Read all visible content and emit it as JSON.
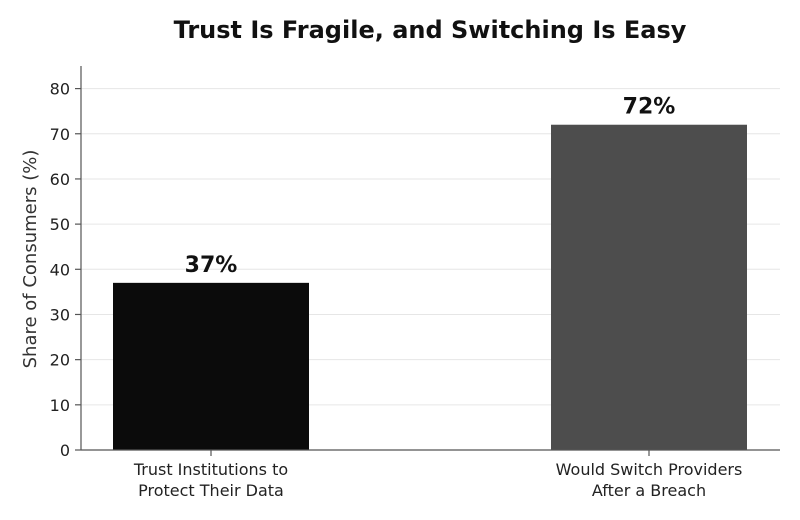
{
  "chart_data": {
    "type": "bar",
    "title": "Trust Is Fragile, and Switching Is Easy",
    "xlabel": "",
    "ylabel": "Share of Consumers (%)",
    "ylim": [
      0,
      85
    ],
    "yticks": [
      0,
      10,
      20,
      30,
      40,
      50,
      60,
      70,
      80
    ],
    "grid": true,
    "categories": [
      [
        "Trust Institutions to",
        "Protect Their Data"
      ],
      [
        "Would Switch Providers",
        "After a Breach"
      ]
    ],
    "values": [
      37,
      72
    ],
    "value_labels": [
      "37%",
      "72%"
    ],
    "colors": [
      "#0b0b0b",
      "#4d4d4d"
    ]
  }
}
